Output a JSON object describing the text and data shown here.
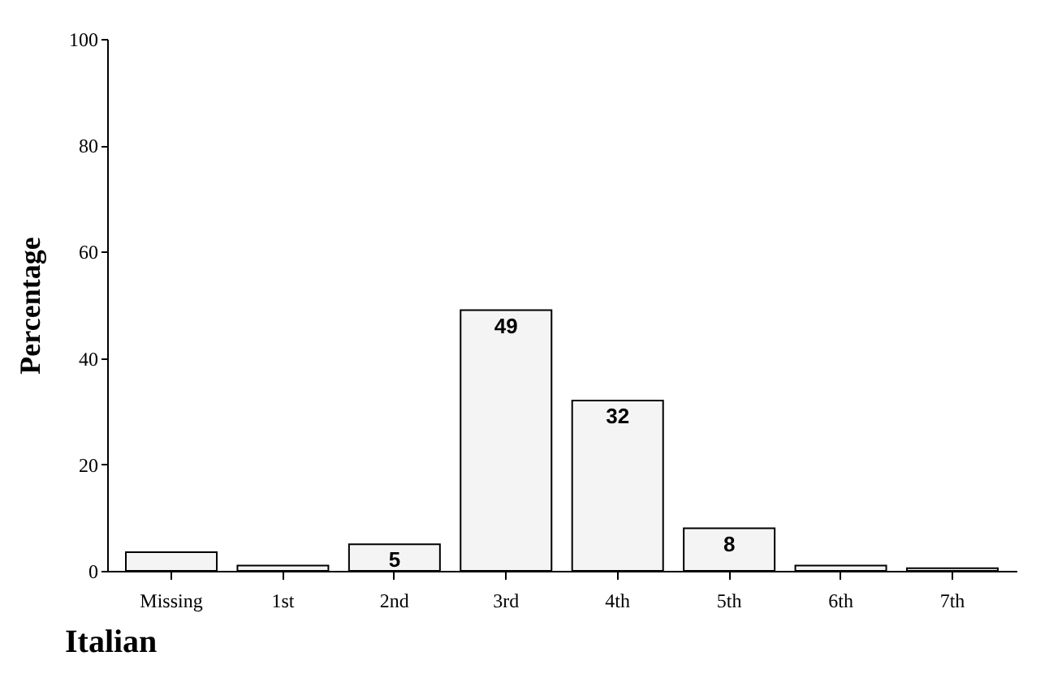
{
  "chart_data": {
    "type": "bar",
    "title": "Italian",
    "ylabel": "Percentage",
    "categories": [
      "Missing",
      "1st",
      "2nd",
      "3rd",
      "4th",
      "5th",
      "6th",
      "7th"
    ],
    "values": [
      3.5,
      1,
      5,
      49,
      32,
      8,
      1,
      0.5
    ],
    "value_labels": [
      null,
      null,
      "5",
      "49",
      "32",
      "8",
      null,
      null
    ],
    "color": "#f4f4f4",
    "ylim": [
      0,
      100
    ],
    "yticks": [
      0,
      20,
      40,
      60,
      80,
      100
    ],
    "grid": false
  }
}
